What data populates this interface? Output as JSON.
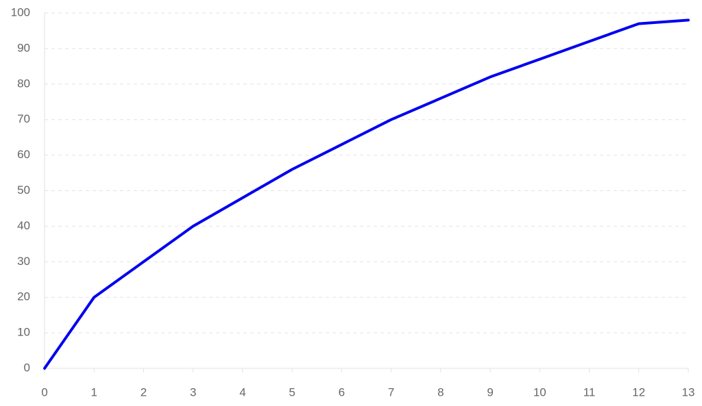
{
  "chart_data": {
    "type": "line",
    "x": [
      0,
      1,
      2,
      3,
      4,
      5,
      6,
      7,
      8,
      9,
      10,
      11,
      12,
      13
    ],
    "series": [
      {
        "color": "#0000ee",
        "values": [
          0,
          20,
          30,
          40,
          48,
          56,
          63,
          70,
          76,
          82,
          87,
          92,
          97,
          98
        ]
      }
    ],
    "xlim": [
      0,
      13
    ],
    "xticks": [
      0,
      1,
      2,
      3,
      4,
      5,
      6,
      7,
      8,
      9,
      10,
      11,
      12,
      13
    ],
    "ylim": [
      0,
      100
    ],
    "yticks": [
      0,
      10,
      20,
      30,
      40,
      50,
      60,
      70,
      80,
      90,
      100
    ],
    "grid": true
  }
}
